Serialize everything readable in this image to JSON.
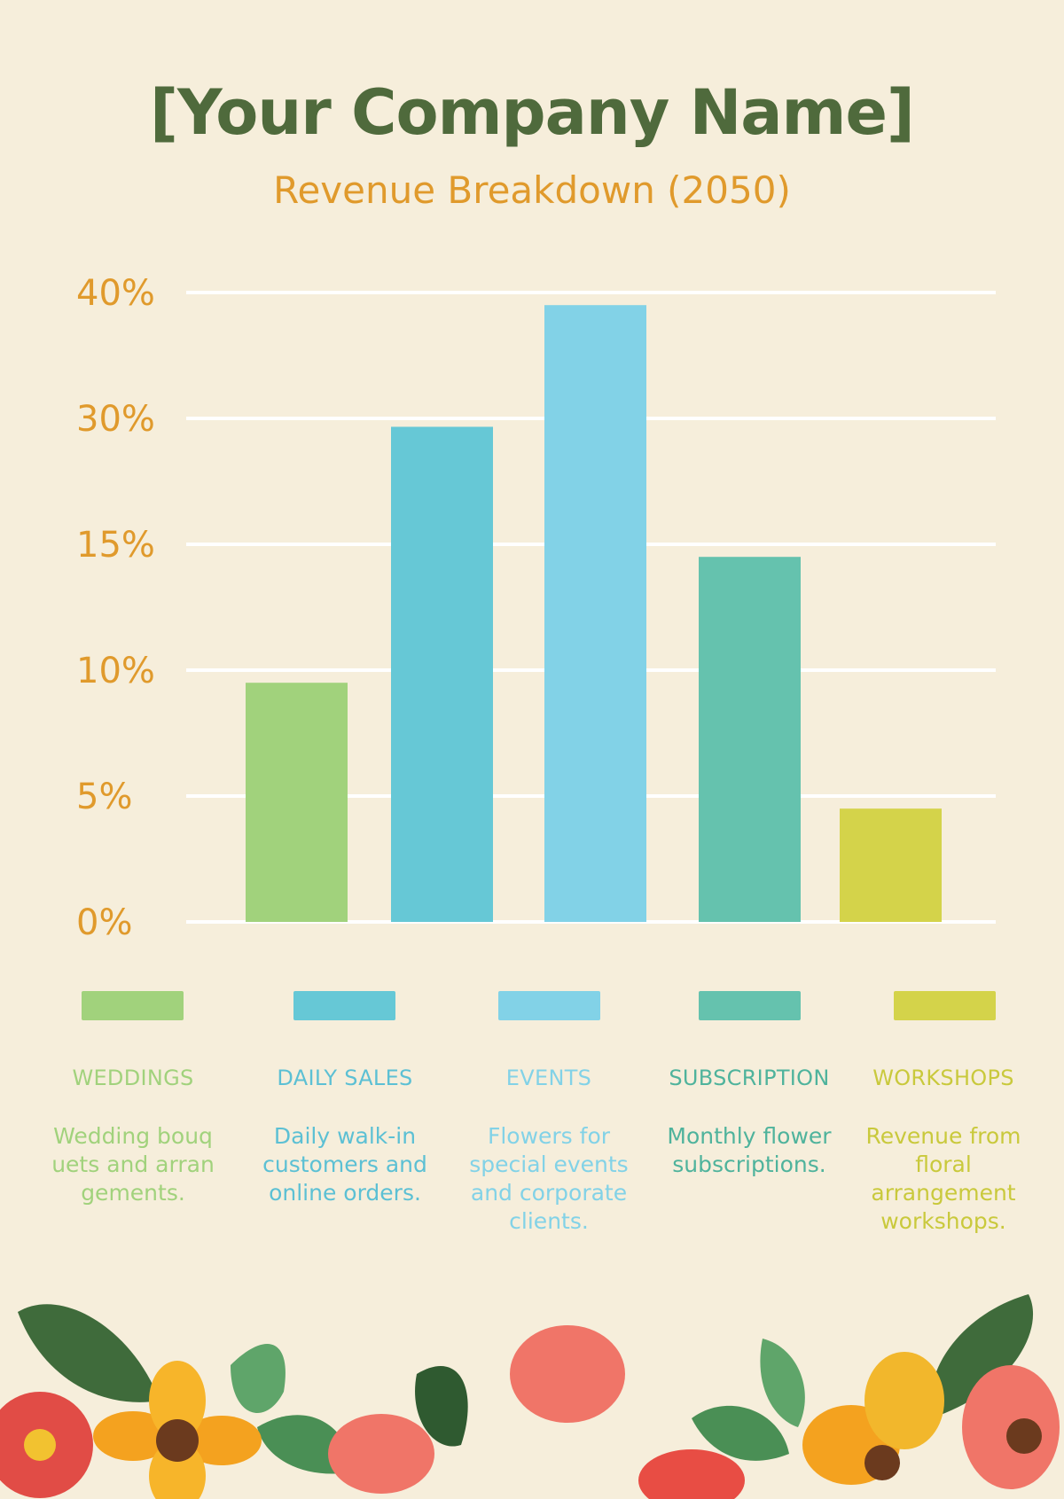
{
  "header": {
    "title": "[Your Company Name]",
    "subtitle": "Revenue Breakdown (2050)"
  },
  "colors": {
    "background": "#f6eedb",
    "title": "#4f6a3c",
    "accent": "#e09a2c",
    "gridline": "#ffffff"
  },
  "chart_data": {
    "type": "bar",
    "title": "Revenue Breakdown (2050)",
    "categories": [
      "WEDDINGS",
      "DAILY SALES",
      "EVENTS",
      "SUBSCRIPTION",
      "WORKSHOPS"
    ],
    "values": [
      9.5,
      29,
      39,
      14.5,
      4.5
    ],
    "value_unit": "%",
    "y_ticks": [
      "0%",
      "5%",
      "10%",
      "15%",
      "30%",
      "40%"
    ],
    "grid": true,
    "legend_position": "bottom",
    "bar_colors": [
      "#a1d27c",
      "#66c8d6",
      "#82d2e7",
      "#65c2ae",
      "#d4d34a"
    ]
  },
  "legend": [
    {
      "label": "WEDDINGS",
      "description": "Wedding bouq uets and arran gements.",
      "color": "#a1d27c",
      "text_color": "#a1d27c"
    },
    {
      "label": "DAILY SALES",
      "description": "Daily walk-in customers and online orders.",
      "color": "#66c8d6",
      "text_color": "#5cc0d4"
    },
    {
      "label": "EVENTS",
      "description": "Flowers for special events and corporate clients.",
      "color": "#82d2e7",
      "text_color": "#82d2e7"
    },
    {
      "label": "SUBSCRIPTION",
      "description": "Monthly flower subscriptions.",
      "color": "#65c2ae",
      "text_color": "#4fb39c"
    },
    {
      "label": "WORKSHOPS",
      "description": "Revenue from floral arrangement workshops.",
      "color": "#d4d34a",
      "text_color": "#c9c93c"
    }
  ]
}
